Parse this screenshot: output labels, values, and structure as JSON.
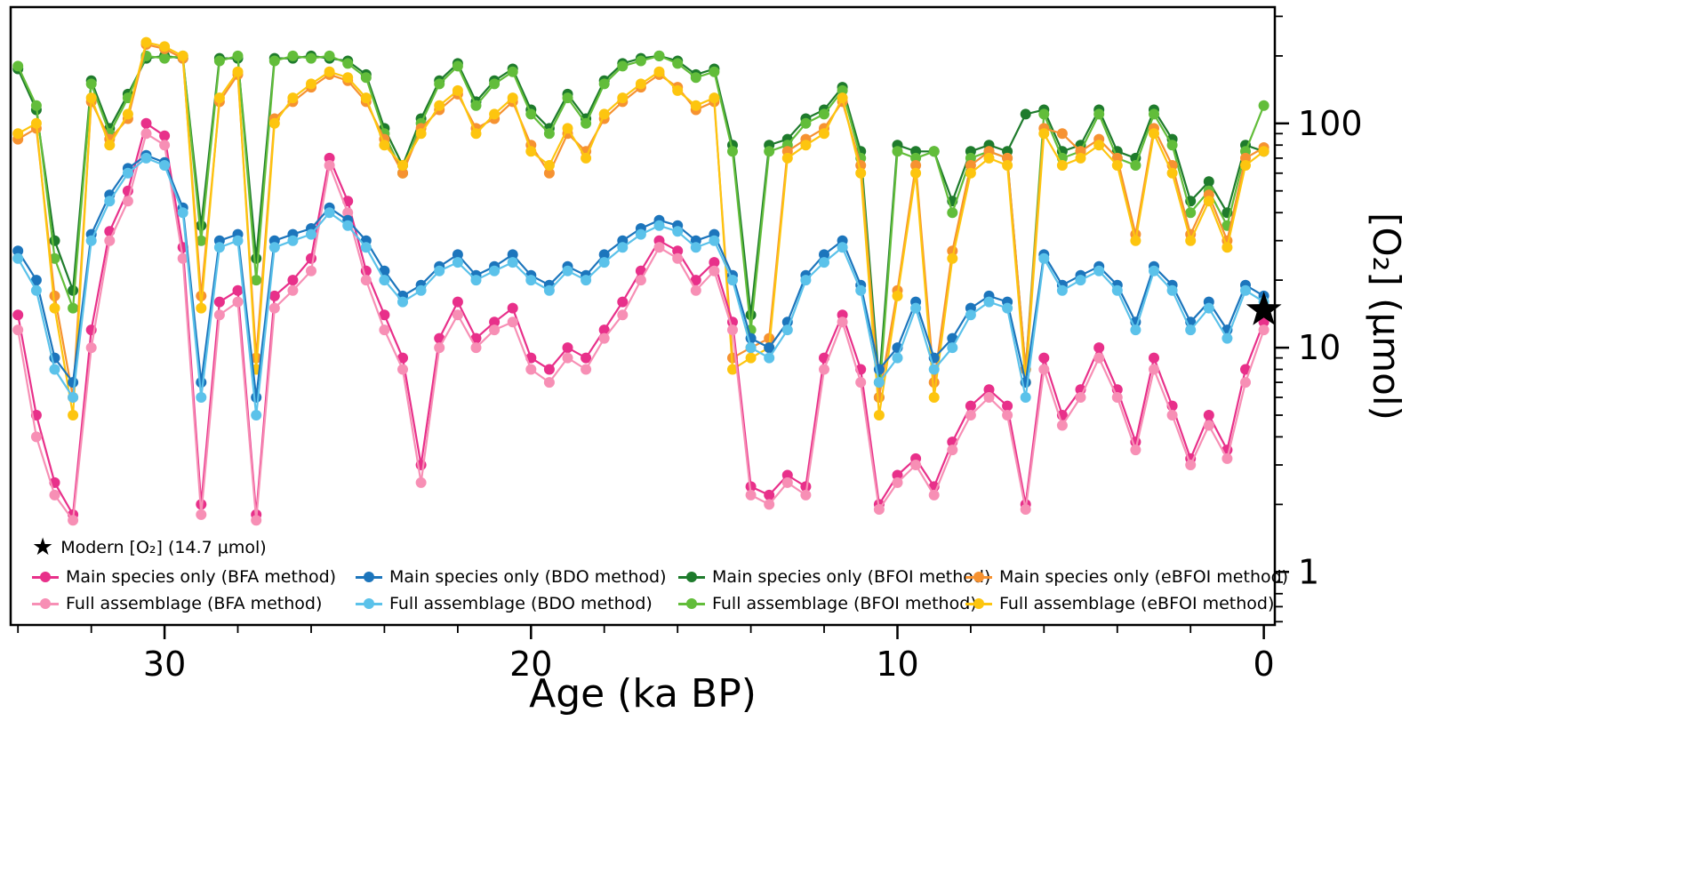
{
  "figure": {
    "background": "#ffffff"
  },
  "axes": {
    "x": {
      "title": "Age (ka BP)",
      "major_ticks": [
        30,
        20,
        10,
        0
      ],
      "major_tick_labels": [
        "30",
        "20",
        "10",
        "0"
      ],
      "minor_step": 2,
      "range_left": 34.2,
      "range_right": -0.3
    },
    "y": {
      "title": "[O₂] (μmol)",
      "scale": "log",
      "major_ticks": [
        100,
        10,
        1
      ],
      "major_tick_labels": [
        "100",
        "10",
        "1"
      ],
      "range_top": 330,
      "range_bottom": 0.58
    }
  },
  "legend": {
    "modern": {
      "label": "Modern [O₂] (14.7 μmol)",
      "marker": "star",
      "color": "#000000"
    },
    "entries": [
      {
        "label": "Main species only (BFA method)",
        "color": "#e8308a"
      },
      {
        "label": "Main species only (BDO method)",
        "color": "#1c75bc"
      },
      {
        "label": "Main species only (BFOI method)",
        "color": "#1e7b2c"
      },
      {
        "label": "Main species only (eBFOI method)",
        "color": "#f69231"
      },
      {
        "label": "Full assemblage (BFA method)",
        "color": "#f78fb5"
      },
      {
        "label": "Full assemblage (BDO method)",
        "color": "#5bc2ea"
      },
      {
        "label": "Full assemblage (BFOI method)",
        "color": "#62bd3a"
      },
      {
        "label": "Full assemblage (eBFOI method)",
        "color": "#fdc50f"
      }
    ]
  },
  "chart_data": {
    "type": "line",
    "xlabel": "Age (ka BP)",
    "ylabel": "[O₂] (μmol)",
    "y_scale": "log",
    "xlim": [
      34.2,
      -0.3
    ],
    "ylim": [
      0.58,
      330
    ],
    "x": [
      34,
      33.5,
      33,
      32.5,
      32,
      31.5,
      31,
      30.5,
      30,
      29.5,
      29,
      28.5,
      28,
      27.5,
      27,
      26.5,
      26,
      25.5,
      25,
      24.5,
      24,
      23.5,
      23,
      22.5,
      22,
      21.5,
      21,
      20.5,
      20,
      19.5,
      19,
      18.5,
      18,
      17.5,
      17,
      16.5,
      16,
      15.5,
      15,
      14.5,
      14,
      13.5,
      13,
      12.5,
      12,
      11.5,
      11,
      10.5,
      10,
      9.5,
      9,
      8.5,
      8,
      7.5,
      7,
      6.5,
      6,
      5.5,
      5,
      4.5,
      4,
      3.5,
      3,
      2.5,
      2,
      1.5,
      1,
      0.5,
      0
    ],
    "series": [
      {
        "id": "main-bfoi",
        "name": "Main species only (BFOI method)",
        "color": "#1e7b2c",
        "values": [
          175,
          115,
          30,
          18,
          155,
          95,
          135,
          195,
          200,
          195,
          35,
          195,
          195,
          25,
          195,
          195,
          200,
          195,
          190,
          165,
          95,
          65,
          105,
          155,
          185,
          125,
          155,
          175,
          115,
          95,
          135,
          105,
          155,
          185,
          195,
          200,
          190,
          165,
          175,
          80,
          14,
          80,
          85,
          105,
          115,
          145,
          75,
          7,
          80,
          75,
          75,
          45,
          75,
          80,
          75,
          110,
          115,
          75,
          80,
          115,
          75,
          70,
          115,
          85,
          45,
          55,
          40,
          80,
          75
        ]
      },
      {
        "id": "full-bfoi",
        "name": "Full assemblage (BFOI method)",
        "color": "#62bd3a",
        "values": [
          180,
          120,
          25,
          15,
          150,
          90,
          130,
          200,
          195,
          200,
          30,
          190,
          200,
          20,
          190,
          200,
          195,
          200,
          185,
          160,
          90,
          60,
          100,
          150,
          180,
          120,
          150,
          170,
          110,
          90,
          130,
          100,
          150,
          180,
          190,
          200,
          185,
          160,
          170,
          75,
          12,
          75,
          80,
          100,
          110,
          140,
          70,
          6,
          75,
          70,
          75,
          40,
          70,
          75,
          70,
          8,
          110,
          70,
          75,
          110,
          70,
          65,
          110,
          80,
          40,
          50,
          35,
          75,
          120
        ]
      },
      {
        "id": "main-ebfoi",
        "name": "Main species only (eBFOI method)",
        "color": "#f69231",
        "values": [
          85,
          95,
          17,
          6,
          125,
          85,
          105,
          225,
          215,
          195,
          17,
          125,
          165,
          9,
          105,
          125,
          145,
          165,
          155,
          125,
          85,
          60,
          95,
          115,
          135,
          95,
          105,
          125,
          80,
          60,
          90,
          75,
          105,
          125,
          145,
          165,
          145,
          115,
          125,
          9,
          10,
          11,
          75,
          85,
          95,
          125,
          65,
          6,
          18,
          65,
          7,
          27,
          65,
          75,
          70,
          8,
          95,
          90,
          75,
          85,
          70,
          32,
          95,
          65,
          32,
          48,
          30,
          70,
          78
        ]
      },
      {
        "id": "full-ebfoi",
        "name": "Full assemblage (eBFOI method)",
        "color": "#fdc50f",
        "values": [
          90,
          100,
          15,
          5,
          130,
          80,
          110,
          230,
          220,
          200,
          15,
          130,
          170,
          8,
          100,
          130,
          150,
          170,
          160,
          130,
          80,
          65,
          90,
          120,
          140,
          90,
          110,
          130,
          75,
          65,
          95,
          70,
          110,
          130,
          150,
          170,
          140,
          120,
          130,
          8,
          9,
          10,
          70,
          80,
          90,
          130,
          60,
          5,
          17,
          60,
          6,
          25,
          60,
          70,
          65,
          7,
          90,
          65,
          70,
          80,
          65,
          30,
          90,
          60,
          30,
          45,
          28,
          65,
          75
        ]
      },
      {
        "id": "main-bfa",
        "name": "Main species only (BFA method)",
        "color": "#e8308a",
        "values": [
          14,
          5,
          2.5,
          1.8,
          12,
          33,
          50,
          100,
          88,
          28,
          2,
          16,
          18,
          1.8,
          17,
          20,
          25,
          70,
          45,
          22,
          14,
          9,
          3,
          11,
          16,
          11,
          13,
          15,
          9,
          8,
          10,
          9,
          12,
          16,
          22,
          30,
          27,
          20,
          24,
          13,
          2.4,
          2.2,
          2.7,
          2.4,
          9,
          14,
          8,
          2,
          2.7,
          3.2,
          2.4,
          3.8,
          5.5,
          6.5,
          5.5,
          2,
          9,
          5,
          6.5,
          10,
          6.5,
          3.8,
          9,
          5.5,
          3.2,
          5,
          3.5,
          8,
          13
        ]
      },
      {
        "id": "full-bfa",
        "name": "Full assemblage (BFA method)",
        "color": "#f78fb5",
        "values": [
          12,
          4,
          2.2,
          1.7,
          10,
          30,
          45,
          90,
          80,
          25,
          1.8,
          14,
          16,
          1.7,
          15,
          18,
          22,
          65,
          40,
          20,
          12,
          8,
          2.5,
          10,
          14,
          10,
          12,
          13,
          8,
          7,
          9,
          8,
          11,
          14,
          20,
          28,
          25,
          18,
          22,
          12,
          2.2,
          2,
          2.5,
          2.2,
          8,
          13,
          7,
          1.9,
          2.5,
          3,
          2.2,
          3.5,
          5,
          6,
          5,
          1.9,
          8,
          4.5,
          6,
          9,
          6,
          3.5,
          8,
          5,
          3,
          4.5,
          3.2,
          7,
          12
        ]
      },
      {
        "id": "main-bdo",
        "name": "Main species only (BDO method)",
        "color": "#1c75bc",
        "values": [
          27,
          20,
          9,
          7,
          32,
          48,
          63,
          72,
          67,
          42,
          7,
          30,
          32,
          6,
          30,
          32,
          34,
          42,
          37,
          30,
          22,
          17,
          19,
          23,
          26,
          21,
          23,
          26,
          21,
          19,
          23,
          21,
          26,
          30,
          34,
          37,
          35,
          30,
          32,
          21,
          11,
          10,
          13,
          21,
          26,
          30,
          19,
          8,
          10,
          16,
          9,
          11,
          15,
          17,
          16,
          7,
          26,
          19,
          21,
          23,
          19,
          13,
          23,
          19,
          13,
          16,
          12,
          19,
          17
        ]
      },
      {
        "id": "full-bdo",
        "name": "Full assemblage (BDO method)",
        "color": "#5bc2ea",
        "values": [
          25,
          18,
          8,
          6,
          30,
          45,
          60,
          70,
          65,
          40,
          6,
          28,
          30,
          5,
          28,
          30,
          32,
          40,
          35,
          28,
          20,
          16,
          18,
          22,
          24,
          20,
          22,
          24,
          20,
          18,
          22,
          20,
          24,
          28,
          32,
          35,
          33,
          28,
          30,
          20,
          10,
          9,
          12,
          20,
          24,
          28,
          18,
          7,
          9,
          15,
          8,
          10,
          14,
          16,
          15,
          6,
          25,
          18,
          20,
          22,
          18,
          12,
          22,
          18,
          12,
          15,
          11,
          18,
          16
        ]
      }
    ],
    "annotations": [
      {
        "type": "star",
        "x": 0,
        "y": 14.7,
        "label": "Modern [O₂] (14.7 μmol)",
        "color": "#000000"
      }
    ]
  }
}
